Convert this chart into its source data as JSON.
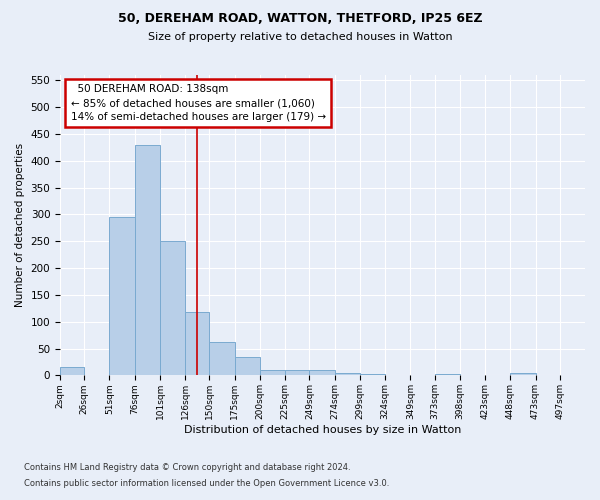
{
  "title1": "50, DEREHAM ROAD, WATTON, THETFORD, IP25 6EZ",
  "title2": "Size of property relative to detached houses in Watton",
  "xlabel": "Distribution of detached houses by size in Watton",
  "ylabel": "Number of detached properties",
  "footnote1": "Contains HM Land Registry data © Crown copyright and database right 2024.",
  "footnote2": "Contains public sector information licensed under the Open Government Licence v3.0.",
  "categories": [
    "2sqm",
    "26sqm",
    "51sqm",
    "76sqm",
    "101sqm",
    "126sqm",
    "150sqm",
    "175sqm",
    "200sqm",
    "225sqm",
    "249sqm",
    "274sqm",
    "299sqm",
    "324sqm",
    "349sqm",
    "373sqm",
    "398sqm",
    "423sqm",
    "448sqm",
    "473sqm",
    "497sqm"
  ],
  "values": [
    15,
    0,
    295,
    430,
    250,
    118,
    62,
    35,
    10,
    10,
    10,
    5,
    3,
    0,
    0,
    3,
    0,
    0,
    5,
    0,
    0
  ],
  "bar_color": "#b8cfe8",
  "bar_edge_color": "#7aaad0",
  "background_color": "#e8eef8",
  "grid_color": "#ffffff",
  "annotation_text": "  50 DEREHAM ROAD: 138sqm\n← 85% of detached houses are smaller (1,060)\n14% of semi-detached houses are larger (179) →",
  "annotation_box_color": "#ffffff",
  "annotation_box_edge": "#cc0000",
  "vline_x": 138,
  "vline_color": "#cc0000",
  "ylim": [
    0,
    560
  ],
  "yticks": [
    0,
    50,
    100,
    150,
    200,
    250,
    300,
    350,
    400,
    450,
    500,
    550
  ],
  "bin_edges": [
    2,
    26,
    51,
    76,
    101,
    126,
    150,
    175,
    200,
    225,
    249,
    274,
    299,
    324,
    349,
    373,
    398,
    423,
    448,
    473,
    497,
    522
  ]
}
